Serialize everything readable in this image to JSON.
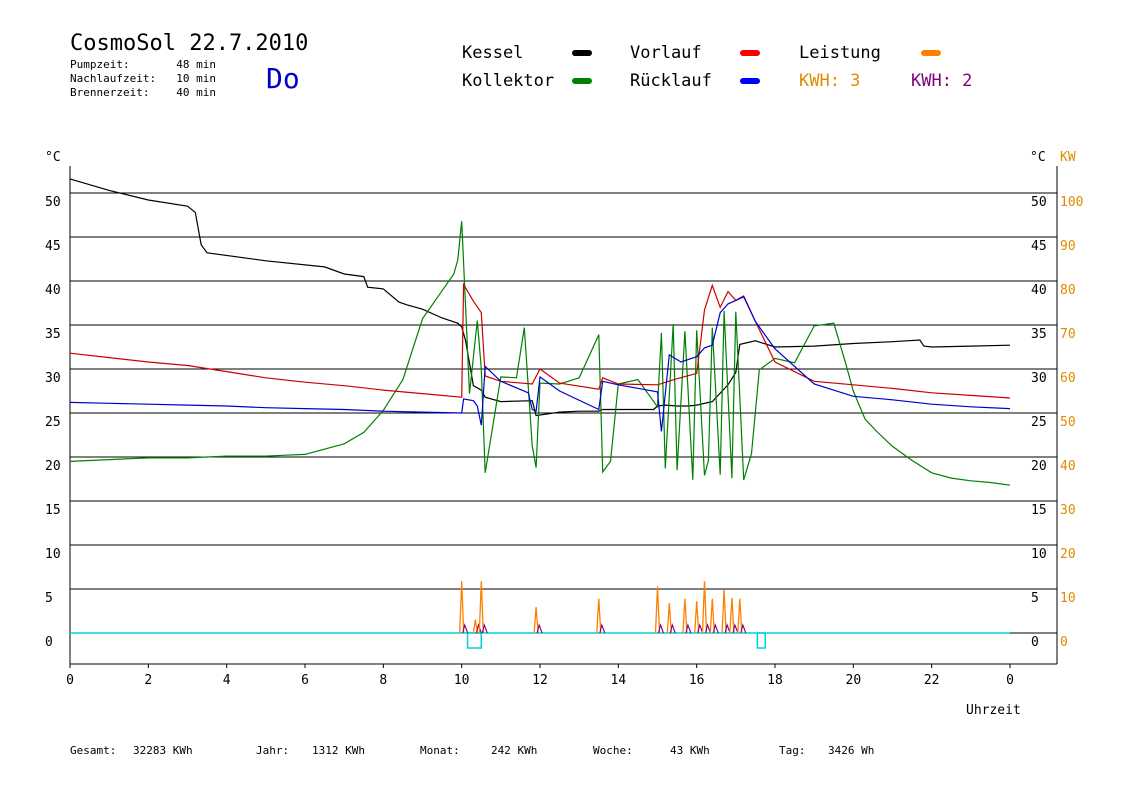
{
  "header": {
    "title": "CosmoSol 22.7.2010",
    "day": "Do",
    "info": [
      {
        "label": "Pumpzeit:",
        "value": "48 min"
      },
      {
        "label": "Nachlaufzeit:",
        "value": "10 min"
      },
      {
        "label": "Brennerzeit:",
        "value": "40 min"
      }
    ]
  },
  "legend": {
    "items": [
      {
        "label": "Kessel",
        "color": "#000000"
      },
      {
        "label": "Vorlauf",
        "color": "#ff0000"
      },
      {
        "label": "Leistung",
        "color": "#ff8000"
      },
      {
        "label": "Kollektor",
        "color": "#008000"
      },
      {
        "label": "Rücklauf",
        "color": "#0000ff"
      }
    ],
    "kwh": [
      {
        "label": "KWH: 3",
        "color": "#e08a00"
      },
      {
        "label": "KWH: 2",
        "color": "#800080"
      }
    ]
  },
  "axes": {
    "left_unit": "°C",
    "right_unit": "°C",
    "right_unit2": "KW",
    "xlabel": "Uhrzeit",
    "x_ticks": [
      "0",
      "2",
      "4",
      "6",
      "8",
      "10",
      "12",
      "14",
      "16",
      "18",
      "20",
      "22",
      "0"
    ],
    "y_ticks": [
      "0",
      "5",
      "10",
      "15",
      "20",
      "25",
      "30",
      "35",
      "40",
      "45",
      "50"
    ],
    "kw_ticks": [
      "0",
      "10",
      "20",
      "30",
      "40",
      "50",
      "60",
      "70",
      "80",
      "90",
      "100"
    ]
  },
  "footer": [
    {
      "label": "Gesamt:",
      "value": "32283 KWh"
    },
    {
      "label": "Jahr:",
      "value": "1312 KWh"
    },
    {
      "label": "Monat:",
      "value": "242 KWh"
    },
    {
      "label": "Woche:",
      "value": "43 KWh"
    },
    {
      "label": "Tag:",
      "value": "3426 Wh"
    }
  ],
  "chart_data": {
    "type": "line",
    "title": "CosmoSol 22.7.2010",
    "xlabel": "Uhrzeit",
    "ylabel": "°C",
    "xlim": [
      0,
      24
    ],
    "ylim": [
      0,
      55
    ],
    "grid": true,
    "series": [
      {
        "name": "Kessel",
        "color": "#000000",
        "x": [
          0,
          1,
          2,
          3,
          3.2,
          3.35,
          3.5,
          5,
          6.5,
          7,
          7.5,
          7.6,
          8,
          8.4,
          8.6,
          9,
          9.5,
          9.9,
          10,
          10.1,
          10.3,
          10.5,
          10.6,
          11,
          11.8,
          11.9,
          12.5,
          13,
          13.5,
          13.6,
          14.5,
          14.9,
          15,
          15.2,
          15.5,
          15.8,
          16,
          16.4,
          16.8,
          17,
          17.1,
          17.5,
          18,
          19,
          20,
          21,
          21.7,
          21.8,
          22,
          23,
          24
        ],
        "y": [
          51.6,
          50.3,
          49.2,
          48.5,
          47.8,
          44.1,
          43.2,
          42.3,
          41.6,
          40.8,
          40.5,
          39.3,
          39.1,
          37.6,
          37.3,
          36.8,
          35.8,
          35.2,
          34.8,
          33.2,
          28.1,
          27.6,
          26.8,
          26.3,
          26.4,
          24.7,
          25.1,
          25.2,
          25.2,
          25.4,
          25.4,
          25.4,
          25.8,
          25.9,
          25.8,
          25.8,
          25.9,
          26.3,
          28.2,
          29.6,
          32.8,
          33.2,
          32.5,
          32.6,
          32.9,
          33.1,
          33.3,
          32.6,
          32.5,
          32.6,
          32.7
        ]
      },
      {
        "name": "Kollektor",
        "color": "#008000",
        "x": [
          0,
          1,
          2,
          3,
          4,
          5,
          5.5,
          6,
          7,
          7.5,
          8,
          8.5,
          9,
          9.5,
          9.8,
          9.9,
          10,
          10.2,
          10.4,
          10.5,
          10.6,
          11,
          11.4,
          11.6,
          11.8,
          11.9,
          12,
          12.5,
          13,
          13.5,
          13.6,
          13.8,
          14,
          14.5,
          15,
          15.1,
          15.2,
          15.4,
          15.5,
          15.7,
          15.9,
          16,
          16.2,
          16.3,
          16.4,
          16.6,
          16.7,
          16.9,
          17,
          17.2,
          17.4,
          17.6,
          18,
          18.5,
          19,
          19.5,
          19.8,
          20,
          20.3,
          20.6,
          21,
          21.5,
          22,
          22.5,
          23,
          23.5,
          24
        ],
        "y": [
          19.5,
          19.7,
          19.9,
          19.9,
          20.1,
          20.1,
          20.2,
          20.3,
          21.5,
          22.8,
          25.3,
          28.8,
          35.7,
          38.9,
          40.8,
          42.4,
          46.8,
          27.2,
          35.5,
          30.0,
          18.2,
          29.1,
          29.0,
          34.7,
          21.3,
          18.8,
          28.4,
          28.3,
          29.0,
          33.9,
          18.3,
          19.5,
          28.3,
          28.8,
          25.7,
          34.1,
          18.7,
          35.1,
          18.5,
          34.3,
          17.4,
          34.4,
          17.9,
          19.6,
          34.7,
          18.0,
          36.6,
          17.6,
          36.5,
          17.4,
          20.4,
          29.9,
          31.2,
          30.7,
          34.9,
          35.2,
          30.7,
          27.5,
          24.3,
          22.9,
          21.2,
          19.6,
          18.2,
          17.6,
          17.3,
          17.1,
          16.8
        ]
      },
      {
        "name": "Vorlauf",
        "color": "#cc0000",
        "x": [
          0,
          1,
          2,
          3,
          4,
          5,
          6,
          7,
          8,
          9,
          10,
          10.05,
          10.3,
          10.5,
          10.6,
          11,
          11.8,
          12,
          12.5,
          13.5,
          13.6,
          14,
          15,
          15.5,
          16,
          16.2,
          16.4,
          16.6,
          16.8,
          17,
          17.2,
          17.5,
          18,
          19,
          20,
          21,
          22,
          23,
          24
        ],
        "y": [
          31.8,
          31.3,
          30.8,
          30.4,
          29.7,
          29.0,
          28.5,
          28.1,
          27.6,
          27.2,
          26.8,
          39.6,
          37.7,
          36.4,
          29.2,
          28.6,
          28.3,
          30.0,
          28.4,
          27.7,
          29.0,
          28.3,
          28.2,
          28.9,
          29.5,
          36.7,
          39.5,
          37.0,
          38.8,
          37.8,
          38.3,
          35.4,
          30.8,
          28.6,
          28.2,
          27.8,
          27.3,
          27.0,
          26.7
        ]
      },
      {
        "name": "Rücklauf",
        "color": "#0000cc",
        "x": [
          0,
          1,
          2,
          3,
          4,
          5,
          6,
          7,
          8,
          9,
          10,
          10.05,
          10.3,
          10.4,
          10.5,
          10.6,
          11,
          11.7,
          11.8,
          11.9,
          12,
          12.5,
          13.5,
          13.6,
          14,
          15,
          15.1,
          15.3,
          15.6,
          16,
          16.2,
          16.4,
          16.6,
          16.8,
          17,
          17.2,
          17.5,
          18,
          19,
          20,
          21,
          22,
          23,
          24
        ],
        "y": [
          26.2,
          26.1,
          26.0,
          25.9,
          25.8,
          25.6,
          25.5,
          25.4,
          25.2,
          25.1,
          25.0,
          26.6,
          26.4,
          25.8,
          23.6,
          30.3,
          28.6,
          27.3,
          25.4,
          25.2,
          29.1,
          27.5,
          25.4,
          28.6,
          28.2,
          27.4,
          22.9,
          31.6,
          30.8,
          31.4,
          32.4,
          32.7,
          36.4,
          37.4,
          37.8,
          38.2,
          35.4,
          32.3,
          28.3,
          26.9,
          26.5,
          26.0,
          25.7,
          25.5
        ]
      }
    ],
    "leistung": {
      "name": "Leistung",
      "color": "#ff8000",
      "ylim_kw": [
        0,
        110
      ],
      "x": [
        10.0,
        10.35,
        10.5,
        11.9,
        13.5,
        15.0,
        15.3,
        15.7,
        16.0,
        16.2,
        16.4,
        16.7,
        16.9,
        17.1
      ],
      "y": [
        11.8,
        3.0,
        11.8,
        5.9,
        7.8,
        10.6,
        6.8,
        7.8,
        7.2,
        11.8,
        7.8,
        9.8,
        8.0,
        7.8
      ]
    },
    "pump_runs": [
      {
        "start": 10.15,
        "end": 10.5
      },
      {
        "start": 17.55,
        "end": 17.75
      }
    ]
  }
}
